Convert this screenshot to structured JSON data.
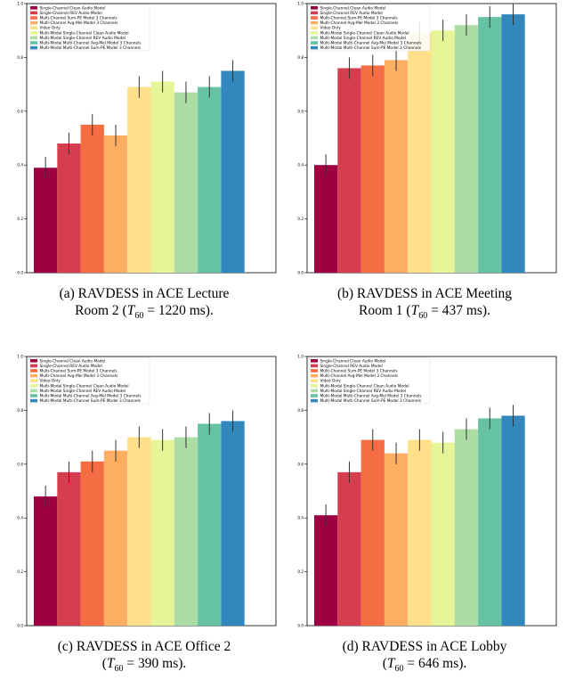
{
  "colors": [
    "#9e0142",
    "#d53e4f",
    "#f46d43",
    "#fdae61",
    "#fee08b",
    "#e6f598",
    "#abdda4",
    "#66c2a5",
    "#3288bd"
  ],
  "legend": [
    "Single-Channel Clean Audio Model",
    "Single-Channel REV Audio Model",
    "Multi-Channel Sum-PE Model 3 Channels",
    "Multi-Channel Avg-Mel Model 3 Channels",
    "Video Only",
    "Multi-Modal Single-Channel Clean Audio Model",
    "Multi-Modal Single-Channel REV Audio Model",
    "Multi-Modal Multi-Channel Avg-Mel Model 3 Channels",
    "Multi-Modal Multi-Channel Sum-PE Model 3 Channels"
  ],
  "chart_data": [
    {
      "type": "bar",
      "categories": [
        "Single-Channel Clean Audio Model",
        "Single-Channel REV Audio Model",
        "Multi-Channel Sum-PE Model 3 Channels",
        "Multi-Channel Avg-Mel Model 3 Channels",
        "Video Only",
        "Multi-Modal Single-Channel Clean Audio Model",
        "Multi-Modal Single-Channel REV Audio Model",
        "Multi-Modal Multi-Channel Avg-Mel Model 3 Channels",
        "Multi-Modal Multi-Channel Sum-PE Model 3 Channels"
      ],
      "values": [
        0.39,
        0.48,
        0.55,
        0.51,
        0.69,
        0.71,
        0.67,
        0.69,
        0.75
      ],
      "errors": [
        0.04,
        0.04,
        0.04,
        0.04,
        0.04,
        0.04,
        0.04,
        0.04,
        0.04
      ],
      "ylim": [
        0,
        1.0
      ],
      "yticks": [
        "0.0",
        "0.2",
        "0.4",
        "0.6",
        "0.8",
        "1.0"
      ],
      "caption_line1": "(a) RAVDESS in ACE Lecture",
      "caption_line2_pre": "Room 2 (",
      "caption_math": "T",
      "caption_sub": "60",
      "caption_line2_post": " = 1220 ms)."
    },
    {
      "type": "bar",
      "categories": [
        "Single-Channel Clean Audio Model",
        "Single-Channel REV Audio Model",
        "Multi-Channel Sum-PE Model 3 Channels",
        "Multi-Channel Avg-Mel Model 3 Channels",
        "Video Only",
        "Multi-Modal Single-Channel Clean Audio Model",
        "Multi-Modal Single-Channel REV Audio Model",
        "Multi-Modal Multi-Channel Avg-Mel Model 3 Channels",
        "Multi-Modal Multi-Channel Sum-PE Model 3 Channels"
      ],
      "values": [
        0.4,
        0.76,
        0.77,
        0.79,
        0.89,
        0.9,
        0.92,
        0.95,
        0.96
      ],
      "errors": [
        0.04,
        0.04,
        0.04,
        0.04,
        0.04,
        0.04,
        0.04,
        0.04,
        0.04
      ],
      "ylim": [
        0,
        1.0
      ],
      "yticks": [
        "0.0",
        "0.2",
        "0.4",
        "0.6",
        "0.8",
        "1.0"
      ],
      "caption_line1": "(b) RAVDESS in ACE Meeting",
      "caption_line2_pre": "Room 1 (",
      "caption_math": "T",
      "caption_sub": "60",
      "caption_line2_post": " = 437 ms)."
    },
    {
      "type": "bar",
      "categories": [
        "Single-Channel Clean Audio Model",
        "Single-Channel REV Audio Model",
        "Multi-Channel Sum-PE Model 3 Channels",
        "Multi-Channel Avg-Mel Model 3 Channels",
        "Video Only",
        "Multi-Modal Single-Channel Clean Audio Model",
        "Multi-Modal Single-Channel REV Audio Model",
        "Multi-Modal Multi-Channel Avg-Mel Model 3 Channels",
        "Multi-Modal Multi-Channel Sum-PE Model 3 Channels"
      ],
      "values": [
        0.48,
        0.57,
        0.61,
        0.65,
        0.7,
        0.69,
        0.7,
        0.75,
        0.76
      ],
      "errors": [
        0.04,
        0.04,
        0.04,
        0.04,
        0.04,
        0.04,
        0.04,
        0.04,
        0.04
      ],
      "ylim": [
        0,
        1.0
      ],
      "yticks": [
        "0.0",
        "0.2",
        "0.4",
        "0.6",
        "0.8",
        "1.0"
      ],
      "caption_line1": "(c) RAVDESS in ACE Office 2",
      "caption_line2_pre": "(",
      "caption_math": "T",
      "caption_sub": "60",
      "caption_line2_post": " = 390 ms)."
    },
    {
      "type": "bar",
      "categories": [
        "Single-Channel Clean Audio Model",
        "Single-Channel REV Audio Model",
        "Multi-Channel Sum-PE Model 3 Channels",
        "Multi-Channel Avg-Mel Model 3 Channels",
        "Video Only",
        "Multi-Modal Single-Channel Clean Audio Model",
        "Multi-Modal Single-Channel REV Audio Model",
        "Multi-Modal Multi-Channel Avg-Mel Model 3 Channels",
        "Multi-Modal Multi-Channel Sum-PE Model 3 Channels"
      ],
      "values": [
        0.41,
        0.57,
        0.69,
        0.64,
        0.69,
        0.68,
        0.73,
        0.77,
        0.78
      ],
      "errors": [
        0.04,
        0.04,
        0.04,
        0.04,
        0.04,
        0.04,
        0.04,
        0.04,
        0.04
      ],
      "ylim": [
        0,
        1.0
      ],
      "yticks": [
        "0.0",
        "0.2",
        "0.4",
        "0.6",
        "0.8",
        "1.0"
      ],
      "caption_line1": "(d) RAVDESS in ACE Lobby",
      "caption_line2_pre": "(",
      "caption_math": "T",
      "caption_sub": "60",
      "caption_line2_post": " = 646 ms)."
    }
  ]
}
